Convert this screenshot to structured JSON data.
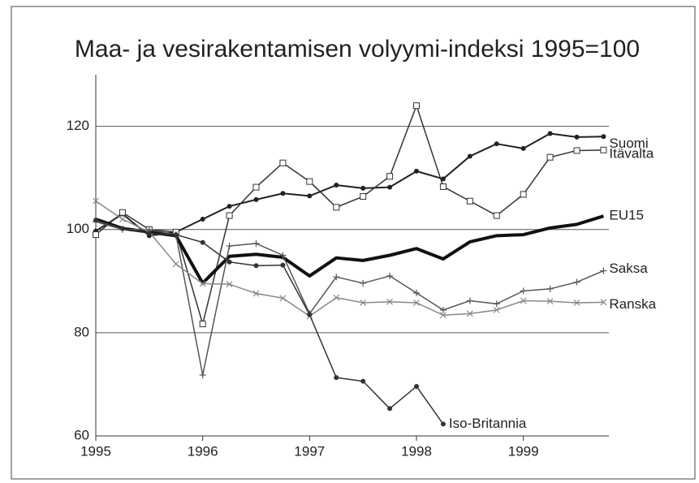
{
  "chart_data": {
    "type": "line",
    "title": "Maa- ja vesirakentamisen volyymi-indeksi 1995=100",
    "x": [
      1995,
      1995.25,
      1995.5,
      1995.75,
      1996,
      1996.25,
      1996.5,
      1996.75,
      1997,
      1997.25,
      1997.5,
      1997.75,
      1998,
      1998.25,
      1998.5,
      1998.75,
      1999,
      1999.25,
      1999.5,
      1999.75
    ],
    "xlim": [
      1995,
      1999.8
    ],
    "xticks": [
      1995,
      1996,
      1997,
      1998,
      1999
    ],
    "ylim": [
      60,
      130
    ],
    "yticks": [
      60,
      80,
      100,
      120
    ],
    "grid": true,
    "series": [
      {
        "name": "Suomi",
        "color": "#222222",
        "marker": "dot",
        "width": 2,
        "values": [
          99.7,
          103,
          98.8,
          99.5,
          102,
          104.5,
          105.8,
          107,
          106.5,
          108.6,
          108,
          108.2,
          111.3,
          109.8,
          114.2,
          116.6,
          115.7,
          118.6,
          117.9,
          118
        ]
      },
      {
        "name": "Itävalta",
        "color": "#333333",
        "marker": "square",
        "width": 1.5,
        "values": [
          99,
          103.3,
          100,
          99.5,
          81.7,
          102.7,
          108.2,
          112.9,
          109.3,
          104.3,
          106.4,
          110.3,
          124,
          108.3,
          105.5,
          102.7,
          106.8,
          114,
          115.3,
          115.4
        ]
      },
      {
        "name": "EU15",
        "color": "#111111",
        "marker": "none",
        "width": 4,
        "values": [
          102,
          100.2,
          99.5,
          98.8,
          89.6,
          94.8,
          95.2,
          94.6,
          91,
          94.5,
          94,
          95,
          96.3,
          94.3,
          97.6,
          98.8,
          99,
          100.3,
          101,
          102.6
        ]
      },
      {
        "name": "Saksa",
        "color": "#555555",
        "marker": "plus",
        "width": 1.5,
        "values": [
          101.5,
          100,
          100,
          99,
          71.8,
          96.8,
          97.3,
          95,
          83.7,
          90.8,
          89.6,
          91,
          87.7,
          84.4,
          86.2,
          85.6,
          88.1,
          88.5,
          89.8,
          92
        ]
      },
      {
        "name": "Ranska",
        "color": "#888888",
        "marker": "cross",
        "width": 1.5,
        "values": [
          105.5,
          102,
          99.5,
          93.3,
          89.5,
          89.4,
          87.6,
          86.7,
          83.2,
          86.8,
          85.8,
          86,
          85.8,
          83.4,
          83.7,
          84.4,
          86.2,
          86.1,
          85.8,
          85.9
        ]
      },
      {
        "name": "Iso-Britannia",
        "color": "#333333",
        "marker": "dot",
        "width": 1.5,
        "values": [
          101.8,
          100.2,
          99.3,
          99,
          97.5,
          93.7,
          93,
          93.1,
          83.5,
          71.3,
          70.6,
          65.3,
          69.6,
          62.3,
          null,
          null,
          null,
          null,
          null,
          null
        ]
      }
    ]
  }
}
